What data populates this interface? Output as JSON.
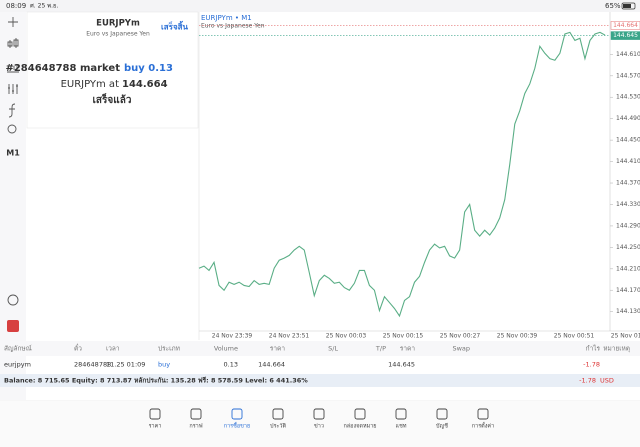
{
  "status_bar": {
    "time": "08:09",
    "date": "ศ. 25 พ.ย.",
    "battery": "65%"
  },
  "toolbar": {
    "timeframe": "M1"
  },
  "order_panel": {
    "symbol": "EURJPYm",
    "description": "Euro vs Japanese Yen",
    "done_button": "เสร็จสิ้น",
    "order_line": "#284648788 market",
    "order_side": "buy 0.13",
    "price_line": "EURJPYm at",
    "price": "144.664",
    "result": "เสร็จแล้ว"
  },
  "chart_data": {
    "type": "line",
    "title": "EURJPYm • M1",
    "subtitle": "Euro vs Japanese Yen",
    "series": [
      {
        "name": "EURJPYm",
        "color": "#5aae86",
        "values": [
          144.211,
          144.215,
          144.207,
          144.222,
          144.179,
          144.17,
          144.185,
          144.181,
          144.185,
          144.179,
          144.177,
          144.188,
          144.181,
          144.183,
          144.181,
          144.211,
          144.226,
          144.23,
          144.235,
          144.245,
          144.252,
          144.245,
          144.203,
          144.16,
          144.188,
          144.198,
          144.192,
          144.183,
          144.185,
          144.175,
          144.17,
          144.183,
          144.207,
          144.207,
          144.179,
          144.17,
          144.132,
          144.158,
          144.147,
          144.136,
          144.122,
          144.151,
          144.158,
          144.185,
          144.196,
          144.222,
          144.245,
          144.256,
          144.249,
          144.252,
          144.234,
          144.23,
          144.245,
          144.316,
          144.33,
          144.282,
          144.271,
          144.282,
          144.273,
          144.286,
          144.305,
          144.339,
          144.405,
          144.48,
          144.505,
          144.537,
          144.555,
          144.584,
          144.625,
          144.612,
          144.602,
          144.599,
          144.612,
          144.648,
          144.651,
          144.636,
          144.64,
          144.602,
          144.636,
          144.648,
          144.651,
          144.646
        ]
      }
    ],
    "price_lines": [
      {
        "value": 144.664,
        "label": "144.664",
        "color": "#e57373"
      },
      {
        "value": 144.645,
        "label": "144.645",
        "color": "#3aa58a"
      }
    ],
    "ylim": [
      144.094,
      144.689
    ],
    "yticks": [
      {
        "value": 144.61,
        "label": "144.610"
      },
      {
        "value": 144.57,
        "label": "144.570"
      },
      {
        "value": 144.53,
        "label": "144.530"
      },
      {
        "value": 144.49,
        "label": "144.490"
      },
      {
        "value": 144.45,
        "label": "144.450"
      },
      {
        "value": 144.41,
        "label": "144.410"
      },
      {
        "value": 144.37,
        "label": "144.370"
      },
      {
        "value": 144.33,
        "label": "144.330"
      },
      {
        "value": 144.29,
        "label": "144.290"
      },
      {
        "value": 144.25,
        "label": "144.250"
      },
      {
        "value": 144.21,
        "label": "144.210"
      },
      {
        "value": 144.17,
        "label": "144.170"
      },
      {
        "value": 144.13,
        "label": "144.130"
      }
    ],
    "xtick_labels": [
      "24 Nov 23:39",
      "24 Nov 23:51",
      "25 Nov 00:03",
      "25 Nov 00:15",
      "25 Nov 00:27",
      "25 Nov 00:39",
      "25 Nov 00:51",
      "25 Nov 01:03"
    ]
  },
  "table": {
    "headers": [
      "สัญลักษณ์",
      "ตั๋ว",
      "เวลา",
      "ประเภท",
      "Volume",
      "ราคา",
      "S/L",
      "T/P",
      "ราคา",
      "Swap",
      "กำไร",
      "หมายเหตุ"
    ],
    "rows": [
      [
        "eurjpym",
        "284648788",
        "11.25 01:09",
        "buy",
        "0.13",
        "144.664",
        null,
        null,
        "144.645",
        null,
        "-1.78",
        null
      ]
    ]
  },
  "balance": {
    "text": "Balance: 8 715.65 Equity: 8 713.87 หลักประกัน: 135.28 ฟรี: 8 578.59 Level: 6 441.36%",
    "profit": "-1.78",
    "currency": "USD"
  },
  "tabs": {
    "items": [
      "ราคา",
      "กราฟ",
      "การซื้อขาย",
      "ประวัติ",
      "ข่าว",
      "กล่องจดหมาย",
      "แชท",
      "บัญชี",
      "การตั้งค่า"
    ],
    "active": 2
  }
}
